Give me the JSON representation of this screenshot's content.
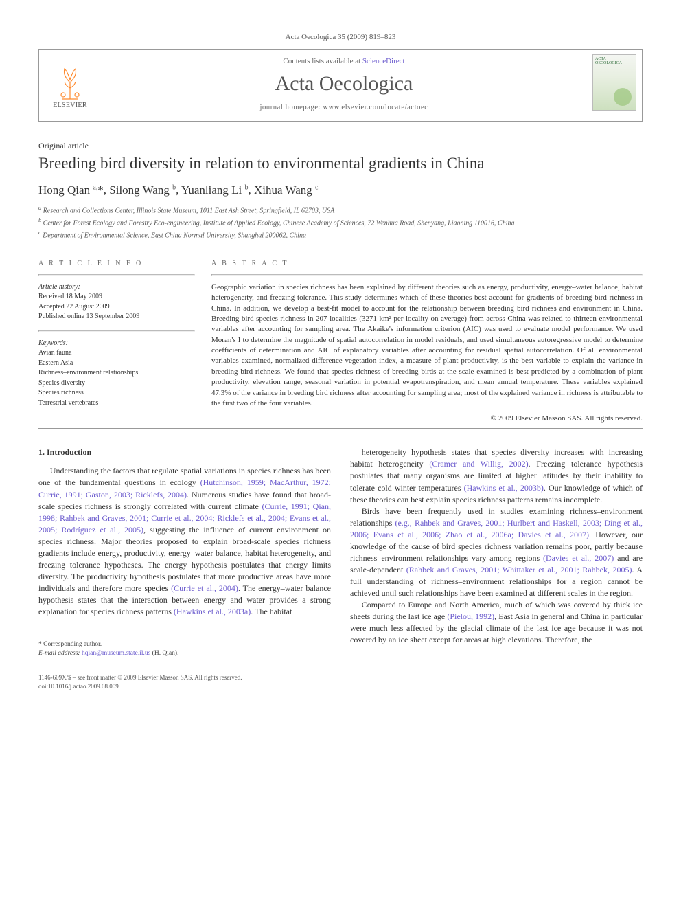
{
  "running_head": "Acta Oecologica 35 (2009) 819–823",
  "header": {
    "contents_prefix": "Contents lists available at ",
    "contents_link": "ScienceDirect",
    "journal": "Acta Oecologica",
    "homepage_prefix": "journal homepage: ",
    "homepage_url": "www.elsevier.com/locate/actoec",
    "publisher": "ELSEVIER",
    "cover_label": "ACTA OECOLOGICA"
  },
  "article_type": "Original article",
  "title": "Breeding bird diversity in relation to environmental gradients in China",
  "authors_html": "Hong Qian <sup>a,</sup>*, Silong Wang <sup>b</sup>, Yuanliang Li <sup>b</sup>, Xihua Wang <sup>c</sup>",
  "affiliations": [
    "a Research and Collections Center, Illinois State Museum, 1011 East Ash Street, Springfield, IL 62703, USA",
    "b Center for Forest Ecology and Forestry Eco-engineering, Institute of Applied Ecology, Chinese Academy of Sciences, 72 Wenhua Road, Shenyang, Liaoning 110016, China",
    "c Department of Environmental Science, East China Normal University, Shanghai 200062, China"
  ],
  "info": {
    "label": "A R T I C L E   I N F O",
    "history_label": "Article history:",
    "history": [
      "Received 18 May 2009",
      "Accepted 22 August 2009",
      "Published online 13 September 2009"
    ],
    "keywords_label": "Keywords:",
    "keywords": [
      "Avian fauna",
      "Eastern Asia",
      "Richness–environment relationships",
      "Species diversity",
      "Species richness",
      "Terrestrial vertebrates"
    ]
  },
  "abstract": {
    "label": "A B S T R A C T",
    "text": "Geographic variation in species richness has been explained by different theories such as energy, productivity, energy–water balance, habitat heterogeneity, and freezing tolerance. This study determines which of these theories best account for gradients of breeding bird richness in China. In addition, we develop a best-fit model to account for the relationship between breeding bird richness and environment in China. Breeding bird species richness in 207 localities (3271 km² per locality on average) from across China was related to thirteen environmental variables after accounting for sampling area. The Akaike's information criterion (AIC) was used to evaluate model performance. We used Moran's I to determine the magnitude of spatial autocorrelation in model residuals, and used simultaneous autoregressive model to determine coefficients of determination and AIC of explanatory variables after accounting for residual spatial autocorrelation. Of all environmental variables examined, normalized difference vegetation index, a measure of plant productivity, is the best variable to explain the variance in breeding bird richness. We found that species richness of breeding birds at the scale examined is best predicted by a combination of plant productivity, elevation range, seasonal variation in potential evapotranspiration, and mean annual temperature. These variables explained 47.3% of the variance in breeding bird richness after accounting for sampling area; most of the explained variance in richness is attributable to the first two of the four variables.",
    "copyright": "© 2009 Elsevier Masson SAS. All rights reserved."
  },
  "body": {
    "heading": "1. Introduction",
    "p1": "Understanding the factors that regulate spatial variations in species richness has been one of the fundamental questions in ecology (Hutchinson, 1959; MacArthur, 1972; Currie, 1991; Gaston, 2003; Ricklefs, 2004). Numerous studies have found that broad-scale species richness is strongly correlated with current climate (Currie, 1991; Qian, 1998; Rahbek and Graves, 2001; Currie et al., 2004; Ricklefs et al., 2004; Evans et al., 2005; Rodríguez et al., 2005), suggesting the influence of current environment on species richness. Major theories proposed to explain broad-scale species richness gradients include energy, productivity, energy–water balance, habitat heterogeneity, and freezing tolerance hypotheses. The energy hypothesis postulates that energy limits diversity. The productivity hypothesis postulates that more productive areas have more individuals and therefore more species (Currie et al., 2004). The energy–water balance hypothesis states that the interaction between energy and water provides a strong explanation for species richness patterns (Hawkins et al., 2003a). The habitat",
    "p2": "heterogeneity hypothesis states that species diversity increases with increasing habitat heterogeneity (Cramer and Willig, 2002). Freezing tolerance hypothesis postulates that many organisms are limited at higher latitudes by their inability to tolerate cold winter temperatures (Hawkins et al., 2003b). Our knowledge of which of these theories can best explain species richness patterns remains incomplete.",
    "p3": "Birds have been frequently used in studies examining richness–environment relationships (e.g., Rahbek and Graves, 2001; Hurlbert and Haskell, 2003; Ding et al., 2006; Evans et al., 2006; Zhao et al., 2006a; Davies et al., 2007). However, our knowledge of the cause of bird species richness variation remains poor, partly because richness–environment relationships vary among regions (Davies et al., 2007) and are scale-dependent (Rahbek and Graves, 2001; Whittaker et al., 2001; Rahbek, 2005). A full understanding of richness–environment relationships for a region cannot be achieved until such relationships have been examined at different scales in the region.",
    "p4": "Compared to Europe and North America, much of which was covered by thick ice sheets during the last ice age (Pielou, 1992), East Asia in general and China in particular were much less affected by the glacial climate of the last ice age because it was not covered by an ice sheet except for areas at high elevations. Therefore, the"
  },
  "footnote": {
    "corr": "* Corresponding author.",
    "email_label": "E-mail address:",
    "email": "hqian@museum.state.il.us",
    "email_suffix": "(H. Qian)."
  },
  "footer": {
    "line1": "1146-609X/$ – see front matter © 2009 Elsevier Masson SAS. All rights reserved.",
    "line2": "doi:10.1016/j.actao.2009.08.009"
  },
  "colors": {
    "link": "#6a5acd",
    "rule": "#999999",
    "text": "#333333",
    "muted": "#555555",
    "elsevier_orange": "#ff8a2e"
  }
}
